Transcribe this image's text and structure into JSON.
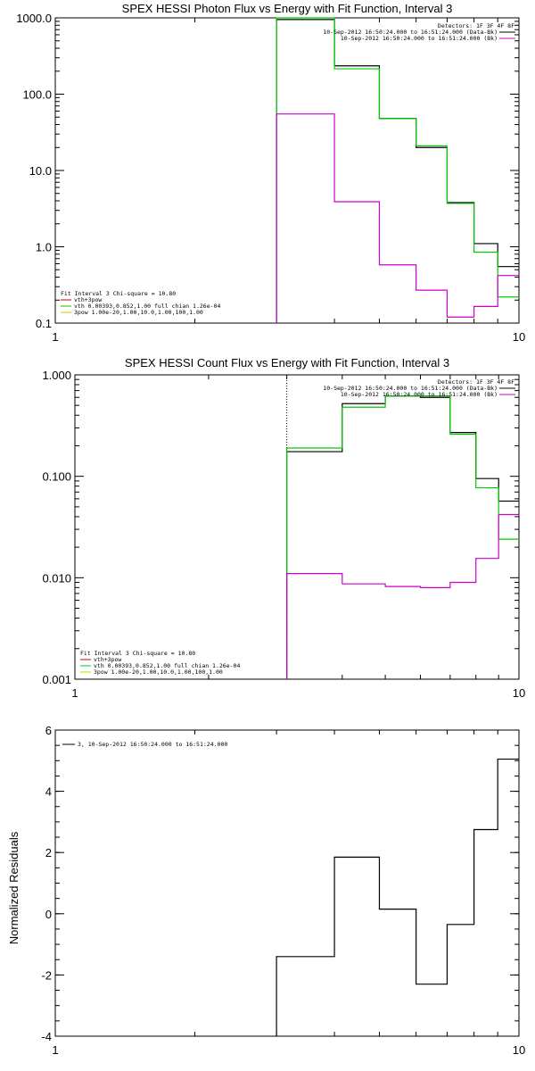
{
  "chart_data": [
    {
      "type": "line",
      "title": "SPEX HESSI Photon Flux vs Energy with Fit Function, Interval 3",
      "x_scale": "log",
      "y_scale": "log",
      "xlim": [
        1,
        10
      ],
      "ylim": [
        0.1,
        1000
      ],
      "x_ticks": [
        "1",
        "10"
      ],
      "y_ticks": [
        "0.1",
        "1.0",
        "10.0",
        "100.0",
        "1000.0"
      ],
      "legend_top_right": {
        "header": "Detectors: 1F 3F 4F 8F",
        "entries": [
          {
            "label": "10-Sep-2012 16:50:24.000 to 16:51:24.000 (Data-Bk)",
            "color": "#000000"
          },
          {
            "label": "10-Sep-2012 16:50:24.000 to 16:51:24.000 (Bk)",
            "color": "#cc00cc"
          }
        ]
      },
      "legend_bottom_left": {
        "header": "Fit Interval 3   Chi-square = 10.80",
        "entries": [
          {
            "label": "vth+3pow",
            "color": "#cc0000"
          },
          {
            "label": "vth 0.00393,0.852,1.00   full chian 1.26e-04",
            "color": "#00cc00"
          },
          {
            "label": "3pow 1.00e-20,1.00,10.0,1.00,100,1.00",
            "color": "#cccc00"
          }
        ]
      },
      "vline_x": 3,
      "series": [
        {
          "color": "#000000",
          "edges": [
            3,
            4,
            5,
            6,
            7,
            8,
            9,
            10
          ],
          "values": [
            950,
            235,
            48,
            20,
            3.8,
            1.1,
            0.55
          ]
        },
        {
          "color": "#00cc00",
          "edges": [
            3,
            4,
            5,
            6,
            7,
            8,
            9,
            10
          ],
          "values": [
            1000,
            215,
            48,
            21,
            3.7,
            0.85,
            0.22
          ]
        },
        {
          "color": "#cc00cc",
          "edges": [
            3,
            4,
            5,
            6,
            7,
            8,
            9,
            10
          ],
          "values": [
            55,
            3.9,
            0.58,
            0.27,
            0.12,
            0.165,
            0.42
          ]
        }
      ]
    },
    {
      "type": "line",
      "title": "SPEX HESSI Count Flux vs Energy with Fit Function, Interval 3",
      "x_scale": "log",
      "y_scale": "log",
      "xlim": [
        1,
        10
      ],
      "ylim": [
        0.001,
        1
      ],
      "x_ticks": [
        "1",
        "10"
      ],
      "y_ticks": [
        "0.001",
        "0.010",
        "0.100",
        "1.000"
      ],
      "legend_top_right": {
        "header": "Detectors: 1F 3F 4F 8F",
        "entries": [
          {
            "label": "10-Sep-2012 16:50:24.000 to 16:51:24.000 (Data-Bk)",
            "color": "#000000"
          },
          {
            "label": "10-Sep-2012 16:50:24.000 to 16:51:24.000 (Bk)",
            "color": "#cc00cc"
          }
        ]
      },
      "legend_bottom_left": {
        "header": "Fit Interval 3   Chi-square = 10.80",
        "entries": [
          {
            "label": "vth+3pow",
            "color": "#cc0000"
          },
          {
            "label": "vth 0.00393,0.852,1.00   full chian 1.26e-04",
            "color": "#00cc00"
          },
          {
            "label": "3pow 1.00e-20,1.00,10.0,1.00,100,1.00",
            "color": "#cccc00"
          }
        ]
      },
      "vline_x": 3,
      "series": [
        {
          "color": "#000000",
          "edges": [
            3,
            4,
            5,
            6,
            7,
            8,
            9,
            10
          ],
          "values": [
            0.175,
            0.52,
            0.62,
            0.6,
            0.27,
            0.095,
            0.057
          ]
        },
        {
          "color": "#00cc00",
          "edges": [
            3,
            4,
            5,
            6,
            7,
            8,
            9,
            10
          ],
          "values": [
            0.19,
            0.48,
            0.62,
            0.62,
            0.26,
            0.077,
            0.024
          ]
        },
        {
          "color": "#cc00cc",
          "edges": [
            3,
            4,
            5,
            6,
            7,
            8,
            9,
            10
          ],
          "values": [
            0.011,
            0.0087,
            0.0082,
            0.008,
            0.009,
            0.0155,
            0.042
          ]
        }
      ]
    },
    {
      "type": "line",
      "title": "",
      "ylabel": "Normalized Residuals",
      "x_scale": "log",
      "y_scale": "linear",
      "xlim": [
        1,
        10
      ],
      "ylim": [
        -4,
        6
      ],
      "x_ticks": [
        "1",
        "10"
      ],
      "y_ticks": [
        "-4",
        "-2",
        "0",
        "2",
        "4",
        "6"
      ],
      "legend_top_left": {
        "entries": [
          {
            "label": "3, 10-Sep-2012 16:50:24.000 to 16:51:24.000",
            "color": "#000000"
          }
        ]
      },
      "series": [
        {
          "color": "#000000",
          "edges": [
            3,
            4,
            5,
            6,
            7,
            8,
            9,
            10
          ],
          "values": [
            -1.4,
            1.85,
            0.15,
            -2.3,
            -0.35,
            2.75,
            5.05
          ]
        }
      ]
    }
  ]
}
